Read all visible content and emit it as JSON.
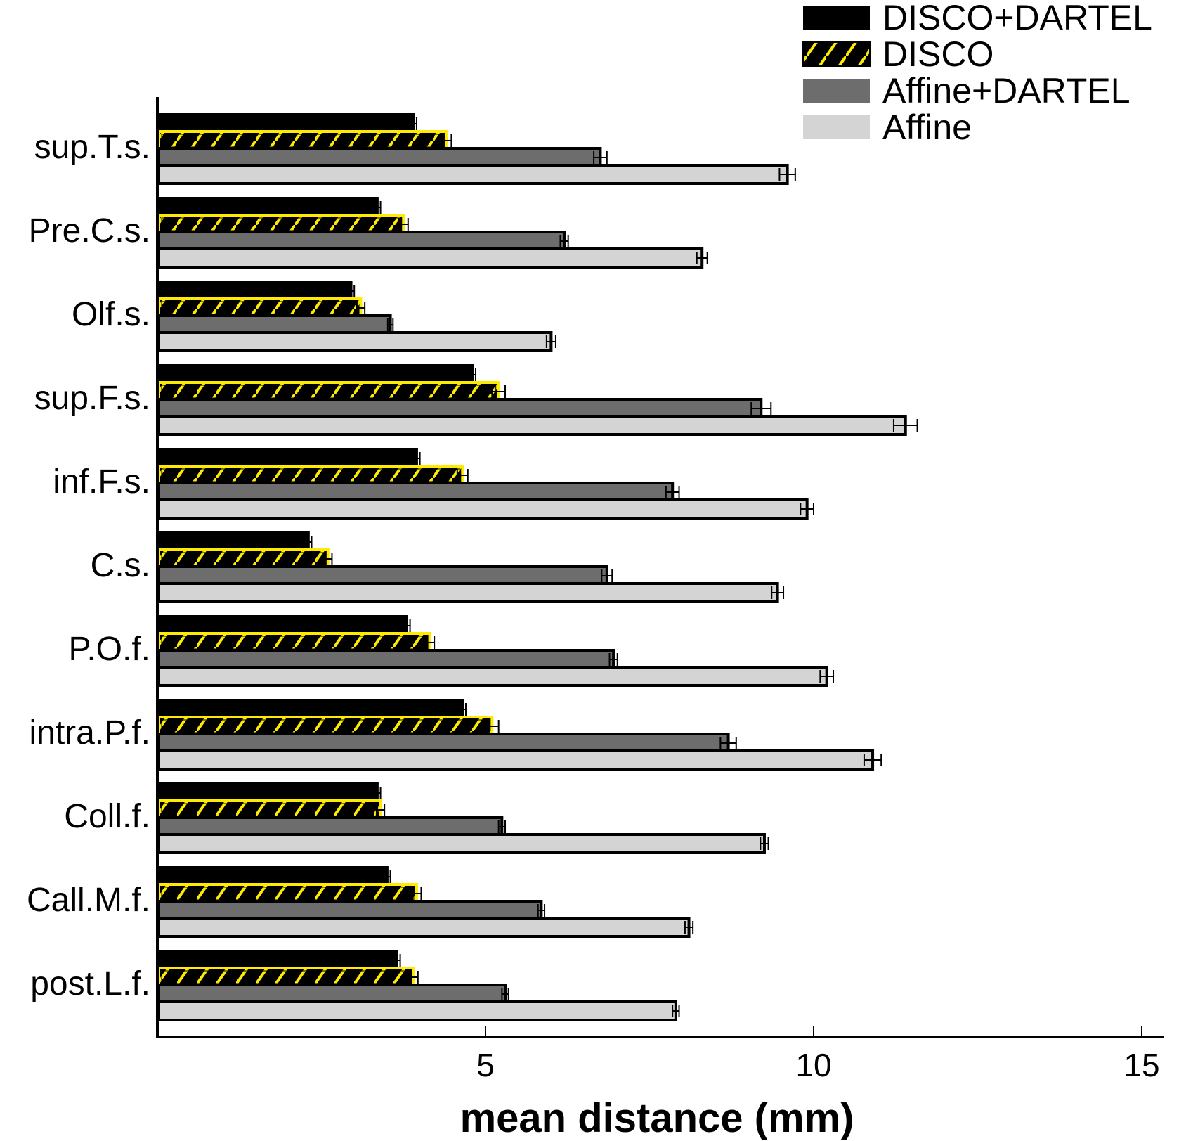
{
  "chart_data": {
    "type": "bar",
    "orientation": "horizontal",
    "title": "",
    "xlabel": "mean distance (mm)",
    "ylabel": "",
    "xlim": [
      0,
      15.3
    ],
    "xticks": [
      5,
      10,
      15
    ],
    "grid": false,
    "legend_position": "top-right",
    "categories": [
      "sup.T.s.",
      "Pre.C.s.",
      "Olf.s.",
      "sup.F.s.",
      "inf.F.s.",
      "C.s.",
      "P.O.f.",
      "intra.P.f.",
      "Coll.f.",
      "Call.M.f.",
      "post.L.f."
    ],
    "series": [
      {
        "name": "DISCO+DARTEL",
        "color": "#000000",
        "pattern": "solid",
        "values": [
          3.9,
          3.35,
          2.95,
          4.8,
          3.95,
          2.3,
          3.8,
          4.65,
          3.35,
          3.5,
          3.65
        ],
        "errors": [
          0.05,
          0.05,
          0.05,
          0.05,
          0.05,
          0.05,
          0.05,
          0.05,
          0.05,
          0.05,
          0.05
        ]
      },
      {
        "name": "DISCO",
        "color": "#ffeb00",
        "pattern": "hatched",
        "values": [
          4.4,
          3.75,
          3.1,
          5.2,
          4.65,
          2.6,
          4.15,
          5.1,
          3.4,
          3.95,
          3.9
        ],
        "errors": [
          0.08,
          0.07,
          0.06,
          0.1,
          0.08,
          0.06,
          0.07,
          0.1,
          0.06,
          0.07,
          0.07
        ]
      },
      {
        "name": "Affine+DARTEL",
        "color": "#6d6d6d",
        "pattern": "solid",
        "values": [
          6.75,
          6.2,
          3.55,
          9.2,
          7.85,
          6.85,
          6.95,
          8.7,
          5.25,
          5.85,
          5.3
        ],
        "errors": [
          0.1,
          0.06,
          0.04,
          0.15,
          0.1,
          0.08,
          0.06,
          0.12,
          0.05,
          0.05,
          0.05
        ]
      },
      {
        "name": "Affine",
        "color": "#d4d4d4",
        "pattern": "solid",
        "values": [
          9.6,
          8.3,
          6.0,
          11.4,
          9.9,
          9.45,
          10.2,
          10.9,
          9.25,
          8.1,
          7.9
        ],
        "errors": [
          0.12,
          0.08,
          0.07,
          0.18,
          0.1,
          0.09,
          0.1,
          0.13,
          0.06,
          0.06,
          0.05
        ]
      }
    ]
  }
}
